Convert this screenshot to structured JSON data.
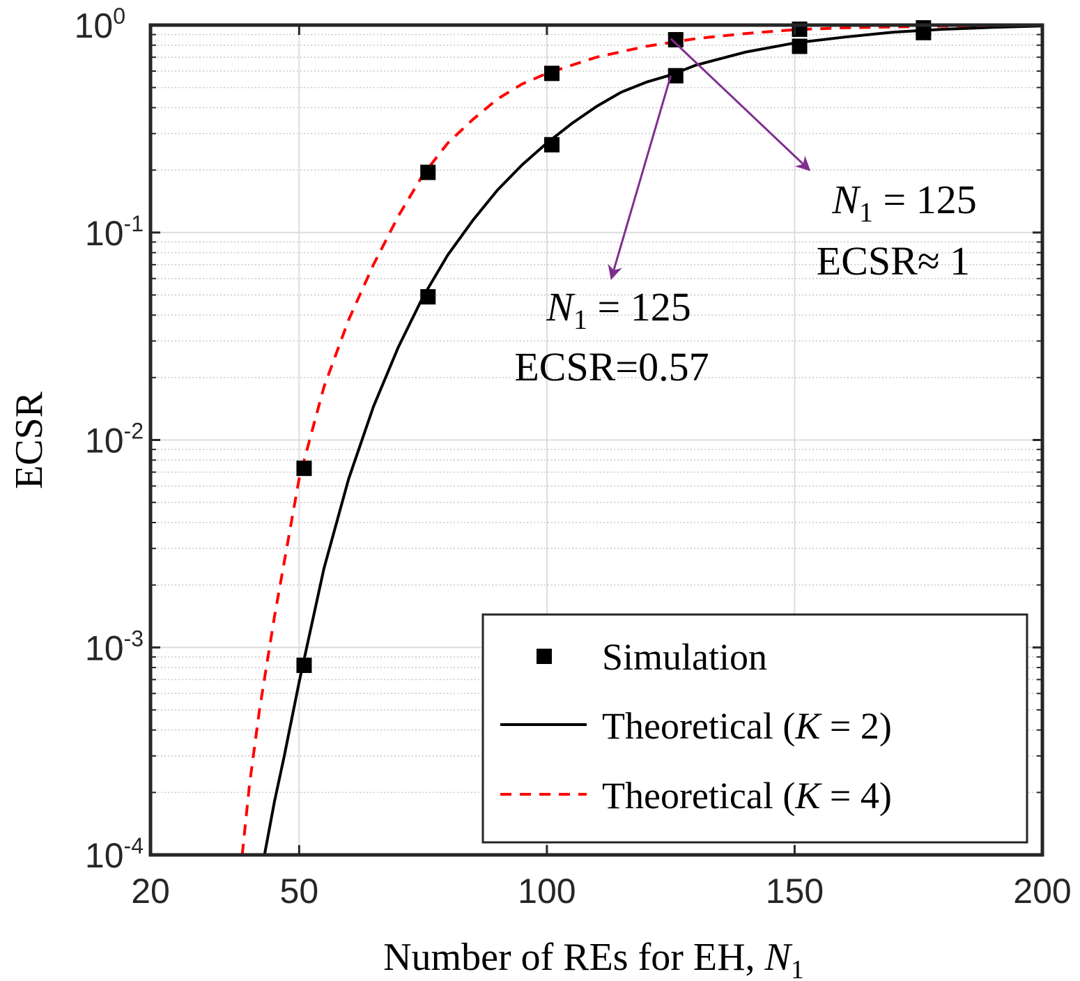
{
  "chart_data": {
    "type": "line",
    "xlabel": "Number of REs for EH, N1",
    "xlabel_text": "Number of REs for EH,",
    "xlabel_var": "N",
    "xlabel_sub": "1",
    "ylabel": "ECSR",
    "xlim": [
      20,
      200
    ],
    "ylim": [
      0.0001,
      1
    ],
    "yscale": "log",
    "grid": true,
    "x_ticks": [
      "20",
      "50",
      "100",
      "150",
      "200"
    ],
    "x_tick_values": [
      20,
      50,
      100,
      150,
      200
    ],
    "y_ticks": [
      {
        "value": 1,
        "base": "10",
        "exp": "0"
      },
      {
        "value": 0.1,
        "base": "10",
        "exp": "-1"
      },
      {
        "value": 0.01,
        "base": "10",
        "exp": "-2"
      },
      {
        "value": 0.001,
        "base": "10",
        "exp": "-3"
      },
      {
        "value": 0.0001,
        "base": "10",
        "exp": "-4"
      }
    ],
    "series": [
      {
        "name": "Theoretical (K = 2)",
        "label_text": "Theoretical (",
        "label_var": "K",
        "label_eq": " = 2)",
        "style": "solid",
        "color": "#000000",
        "x": [
          43,
          45,
          47,
          50,
          55,
          60,
          65,
          70,
          75,
          80,
          85,
          90,
          95,
          100,
          105,
          110,
          115,
          120,
          125,
          130,
          140,
          150,
          160,
          170,
          180,
          190,
          200
        ],
        "y": [
          0.0001,
          0.00018,
          0.0003,
          0.00068,
          0.0024,
          0.0065,
          0.0145,
          0.028,
          0.049,
          0.078,
          0.114,
          0.16,
          0.212,
          0.27,
          0.335,
          0.405,
          0.475,
          0.53,
          0.575,
          0.64,
          0.74,
          0.82,
          0.875,
          0.925,
          0.955,
          0.975,
          0.99
        ]
      },
      {
        "name": "Theoretical (K = 4)",
        "label_text": "Theoretical (",
        "label_var": "K",
        "label_eq": " = 4)",
        "style": "dashed",
        "color": "#ff0000",
        "x": [
          38.5,
          40,
          42,
          45,
          50,
          55,
          60,
          65,
          70,
          75,
          80,
          85,
          90,
          95,
          100,
          105,
          110,
          120,
          130,
          140,
          150,
          160,
          175,
          190,
          200
        ],
        "y": [
          0.0001,
          0.00022,
          0.0005,
          0.0014,
          0.0065,
          0.018,
          0.038,
          0.07,
          0.12,
          0.19,
          0.27,
          0.35,
          0.44,
          0.52,
          0.585,
          0.64,
          0.7,
          0.79,
          0.86,
          0.91,
          0.95,
          0.97,
          0.985,
          0.995,
          1.0
        ]
      },
      {
        "name": "Simulation",
        "style": "markers",
        "marker": "square",
        "color": "#000000",
        "points": [
          {
            "x": 51,
            "y": 0.00082
          },
          {
            "x": 51,
            "y": 0.0073
          },
          {
            "x": 76,
            "y": 0.049
          },
          {
            "x": 76,
            "y": 0.195
          },
          {
            "x": 101,
            "y": 0.265
          },
          {
            "x": 101,
            "y": 0.585
          },
          {
            "x": 126,
            "y": 0.57
          },
          {
            "x": 126,
            "y": 0.85
          },
          {
            "x": 151,
            "y": 0.79
          },
          {
            "x": 151,
            "y": 0.955
          },
          {
            "x": 176,
            "y": 0.92
          },
          {
            "x": 176,
            "y": 0.97
          }
        ]
      }
    ],
    "legend": {
      "placement": "bottom-right",
      "entries": [
        "Simulation",
        "Theoretical (K = 2)",
        "Theoretical (K = 4)"
      ]
    },
    "annotations": [
      {
        "line1_var": "N",
        "line1_sub": "1",
        "line1_rest": " = 125",
        "line2": "ECSR=0.57",
        "arrow_from": {
          "x": 125,
          "y": 0.57
        },
        "arrow_to": {
          "x": 113,
          "y": 0.06
        }
      },
      {
        "line1_var": "N",
        "line1_sub": "1",
        "line1_rest": " = 125",
        "line2": "ECSR≈ 1",
        "arrow_from": {
          "x": 125,
          "y": 0.86
        },
        "arrow_to": {
          "x": 153,
          "y": 0.2
        }
      }
    ],
    "annotation_color": "#7e2f8e"
  }
}
